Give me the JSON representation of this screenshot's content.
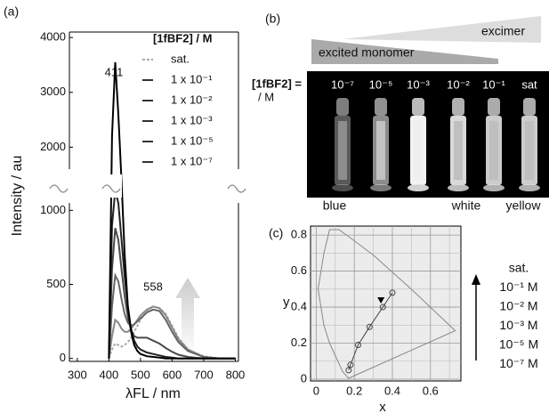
{
  "chart_data": [
    {
      "type": "line",
      "panel": "(a)",
      "ylabel": "Intensity / au",
      "xlabel": "λFL / nm",
      "xlim": [
        275,
        810
      ],
      "xticks": [
        300,
        400,
        500,
        600,
        700,
        800
      ],
      "ylim": [
        -20,
        4100
      ],
      "ybreak": [
        1050,
        1600
      ],
      "yticks": [
        0,
        500,
        1000,
        2000,
        3000,
        4000
      ],
      "legend_title": "[1fBF2] / M",
      "annotations": [
        "411",
        "558"
      ],
      "x": [
        400,
        410,
        420,
        430,
        440,
        450,
        460,
        470,
        480,
        490,
        500,
        520,
        540,
        560,
        580,
        600,
        620,
        650,
        700,
        750,
        800
      ],
      "series": [
        {
          "name": "sat.",
          "color": "#aaaaaa",
          "dashed": true,
          "values": [
            0,
            60,
            100,
            90,
            80,
            90,
            110,
            140,
            180,
            220,
            260,
            320,
            350,
            340,
            300,
            220,
            140,
            60,
            15,
            0,
            0
          ]
        },
        {
          "name": "1 x 10⁻¹",
          "color": "#888888",
          "values": [
            0,
            150,
            260,
            240,
            200,
            180,
            180,
            200,
            230,
            260,
            290,
            330,
            350,
            340,
            290,
            210,
            130,
            60,
            10,
            0,
            0
          ]
        },
        {
          "name": "1 x 10⁻²",
          "color": "#666666",
          "values": [
            0,
            350,
            560,
            520,
            400,
            300,
            240,
            220,
            230,
            250,
            270,
            310,
            330,
            320,
            260,
            180,
            110,
            50,
            10,
            0,
            0
          ]
        },
        {
          "name": "1 x 10⁻³",
          "color": "#4a4a4a",
          "values": [
            0,
            600,
            880,
            800,
            600,
            420,
            280,
            190,
            150,
            140,
            140,
            140,
            120,
            100,
            70,
            45,
            25,
            10,
            0,
            0,
            0
          ]
        },
        {
          "name": "1 x 10⁻⁵",
          "color": "#222222",
          "values": [
            0,
            900,
            1250,
            1050,
            800,
            550,
            350,
            200,
            120,
            80,
            60,
            40,
            30,
            20,
            10,
            5,
            0,
            0,
            0,
            0,
            0
          ]
        },
        {
          "name": "1 x 10⁻⁷",
          "color": "#000000",
          "values": [
            0,
            2200,
            3550,
            2600,
            1400,
            700,
            350,
            180,
            90,
            50,
            30,
            15,
            10,
            5,
            0,
            0,
            0,
            0,
            0,
            0,
            0
          ]
        }
      ]
    },
    {
      "type": "scatter",
      "panel": "(c)",
      "xlabel": "x",
      "ylabel": "y",
      "xlim": [
        -0.03,
        0.76
      ],
      "ylim": [
        -0.01,
        0.85
      ],
      "xticks": [
        0,
        0.2,
        0.4,
        0.6
      ],
      "yticks": [
        0,
        0.2,
        0.4,
        0.6,
        0.8
      ],
      "xminor": [
        0.1,
        0.3,
        0.5,
        0.7
      ],
      "yminor": [
        0.1,
        0.3,
        0.5,
        0.7
      ],
      "grid": true,
      "series": [
        {
          "marker": "circle",
          "color": "#444444",
          "connect": true,
          "x": [
            0.17,
            0.18,
            0.22,
            0.28,
            0.35,
            0.4
          ],
          "y": [
            0.05,
            0.08,
            0.19,
            0.29,
            0.4,
            0.48
          ]
        },
        {
          "marker": "triangle",
          "color": "#000000",
          "x": [
            0.34
          ],
          "y": [
            0.44
          ]
        }
      ],
      "legend": [
        "sat.",
        "10⁻¹ M",
        "10⁻² M",
        "10⁻³ M",
        "10⁻⁵ M",
        "10⁻⁷ M"
      ]
    }
  ],
  "panel_b": {
    "panel": "(b)",
    "wedge_top": "excimer",
    "wedge_bottom": "excited monomer",
    "conc_label": "[1fBF2] =",
    "conc_unit": "/ M",
    "vials": [
      "10⁻⁷",
      "10⁻⁵",
      "10⁻³",
      "10⁻²",
      "10⁻¹",
      "sat"
    ],
    "colors": [
      "blue",
      "white",
      "yellow"
    ]
  }
}
